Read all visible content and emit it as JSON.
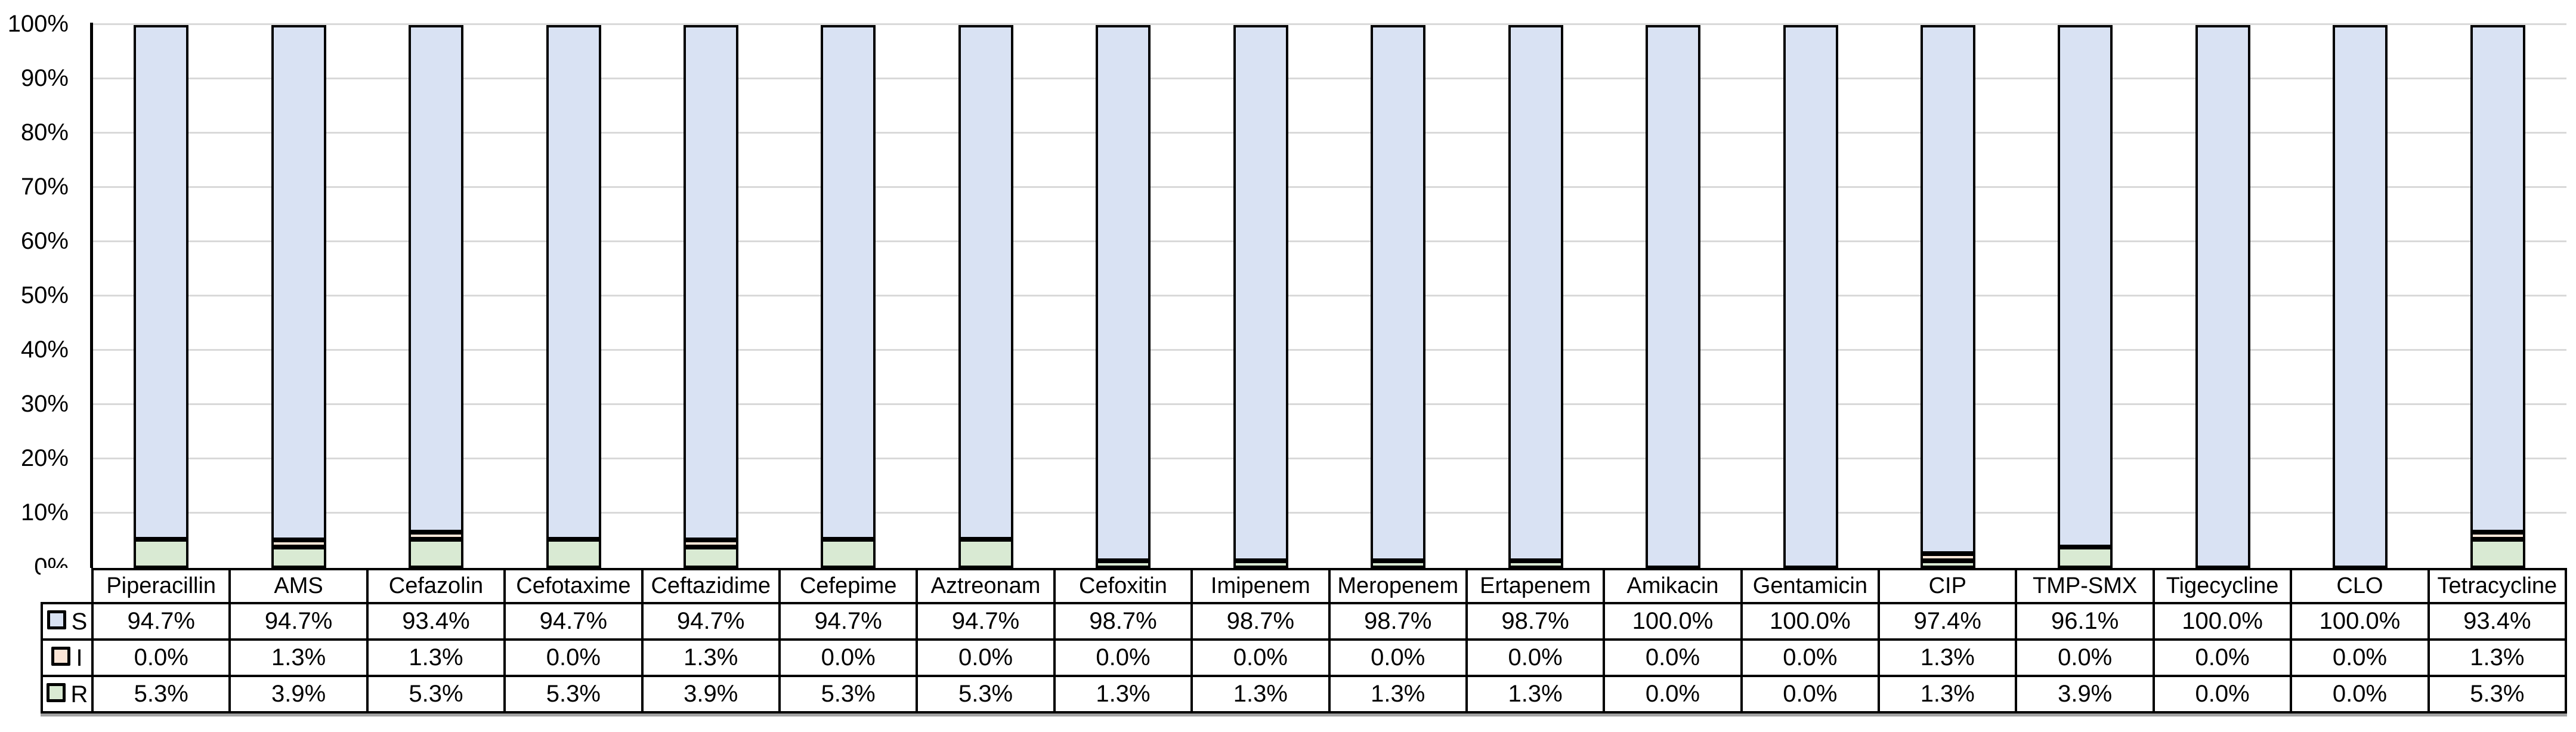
{
  "chart_data": {
    "type": "bar",
    "stacked": true,
    "percent_stacked": true,
    "title": "",
    "xlabel": "",
    "ylabel": "",
    "ylim": [
      0,
      100
    ],
    "grid": true,
    "y_ticks": [
      "100%",
      "90%",
      "80%",
      "70%",
      "60%",
      "50%",
      "40%",
      "30%",
      "20%",
      "10%",
      "0%"
    ],
    "categories": [
      "Piperacillin",
      "AMS",
      "Cefazolin",
      "Cefotaxime",
      "Ceftazidime",
      "Cefepime",
      "Aztreonam",
      "Cefoxitin",
      "Imipenem",
      "Meropenem",
      "Ertapenem",
      "Amikacin",
      "Gentamicin",
      "CIP",
      "TMP-SMX",
      "Tigecycline",
      "CLO",
      "Tetracycline"
    ],
    "series": [
      {
        "name": "S",
        "color": "#D9E2F3",
        "values": [
          94.7,
          94.7,
          93.4,
          94.7,
          94.7,
          94.7,
          94.7,
          98.7,
          98.7,
          98.7,
          98.7,
          100.0,
          100.0,
          97.4,
          96.1,
          100.0,
          100.0,
          93.4
        ]
      },
      {
        "name": "I",
        "color": "#FBE5D6",
        "values": [
          0.0,
          1.3,
          1.3,
          0.0,
          1.3,
          0.0,
          0.0,
          0.0,
          0.0,
          0.0,
          0.0,
          0.0,
          0.0,
          1.3,
          0.0,
          0.0,
          0.0,
          1.3
        ]
      },
      {
        "name": "R",
        "color": "#D9EAD3",
        "values": [
          5.3,
          3.9,
          5.3,
          5.3,
          3.9,
          5.3,
          5.3,
          1.3,
          1.3,
          1.3,
          1.3,
          0.0,
          0.0,
          1.3,
          3.9,
          0.0,
          0.0,
          5.3
        ]
      }
    ],
    "stack_order_bottom_to_top": [
      "R",
      "I",
      "S"
    ],
    "legend_position": "table-left"
  },
  "table": {
    "row_labels": [
      "S",
      "I",
      "R"
    ],
    "display_values": {
      "S": [
        "94.7%",
        "94.7%",
        "93.4%",
        "94.7%",
        "94.7%",
        "94.7%",
        "94.7%",
        "98.7%",
        "98.7%",
        "98.7%",
        "98.7%",
        "100.0%",
        "100.0%",
        "97.4%",
        "96.1%",
        "100.0%",
        "100.0%",
        "93.4%"
      ],
      "I": [
        "0.0%",
        "1.3%",
        "1.3%",
        "0.0%",
        "1.3%",
        "0.0%",
        "0.0%",
        "0.0%",
        "0.0%",
        "0.0%",
        "0.0%",
        "0.0%",
        "0.0%",
        "1.3%",
        "0.0%",
        "0.0%",
        "0.0%",
        "1.3%"
      ],
      "R": [
        "5.3%",
        "3.9%",
        "5.3%",
        "5.3%",
        "3.9%",
        "5.3%",
        "5.3%",
        "1.3%",
        "1.3%",
        "1.3%",
        "1.3%",
        "0.0%",
        "0.0%",
        "1.3%",
        "3.9%",
        "0.0%",
        "0.0%",
        "5.3%"
      ]
    }
  },
  "colors": {
    "s_fill": "#D9E2F3",
    "i_fill": "#FBE5D6",
    "r_fill": "#D9EAD3",
    "bar_border": "#000000",
    "gridline": "#D9D9D9",
    "table_border": "#000000",
    "text": "#000000"
  }
}
